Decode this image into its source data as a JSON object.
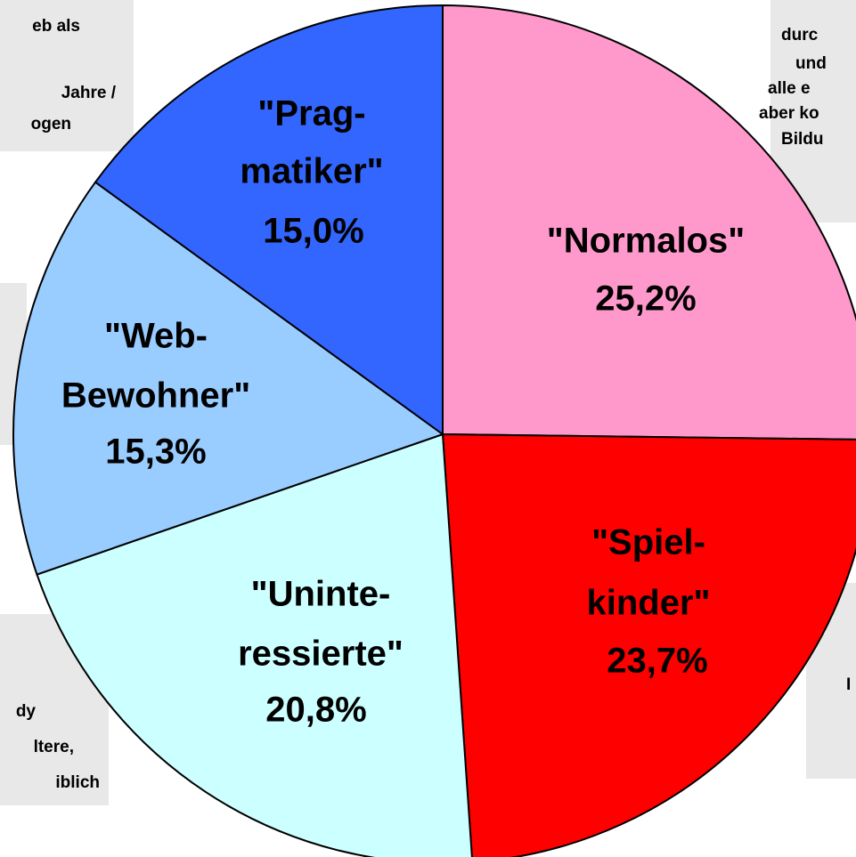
{
  "chart_data": {
    "type": "pie",
    "categories": [
      [
        "\"Normalos\""
      ],
      [
        "\"Spiel-",
        "kinder\""
      ],
      [
        "\"Uninte-",
        "ressierte\""
      ],
      [
        "\"Web-",
        "Bewohner\""
      ],
      [
        "\"Prag-",
        "matiker\""
      ]
    ],
    "values": [
      25.2,
      23.7,
      20.8,
      15.3,
      15.0
    ],
    "value_labels": [
      "25,2%",
      "23,7%",
      "20,8%",
      "15,3%",
      "15,0%"
    ],
    "colors": [
      "#ff99cc",
      "#ff0000",
      "#ccffff",
      "#99ccff",
      "#3366ff"
    ],
    "annotations": [
      [
        "eb als",
        "Jahre /",
        "ogen"
      ],
      [
        "durc",
        "und",
        "alle e",
        "aber ko",
        "Bildu"
      ],
      [],
      [
        "dy",
        "ltere,",
        "iblich"
      ],
      [
        "I"
      ]
    ]
  }
}
